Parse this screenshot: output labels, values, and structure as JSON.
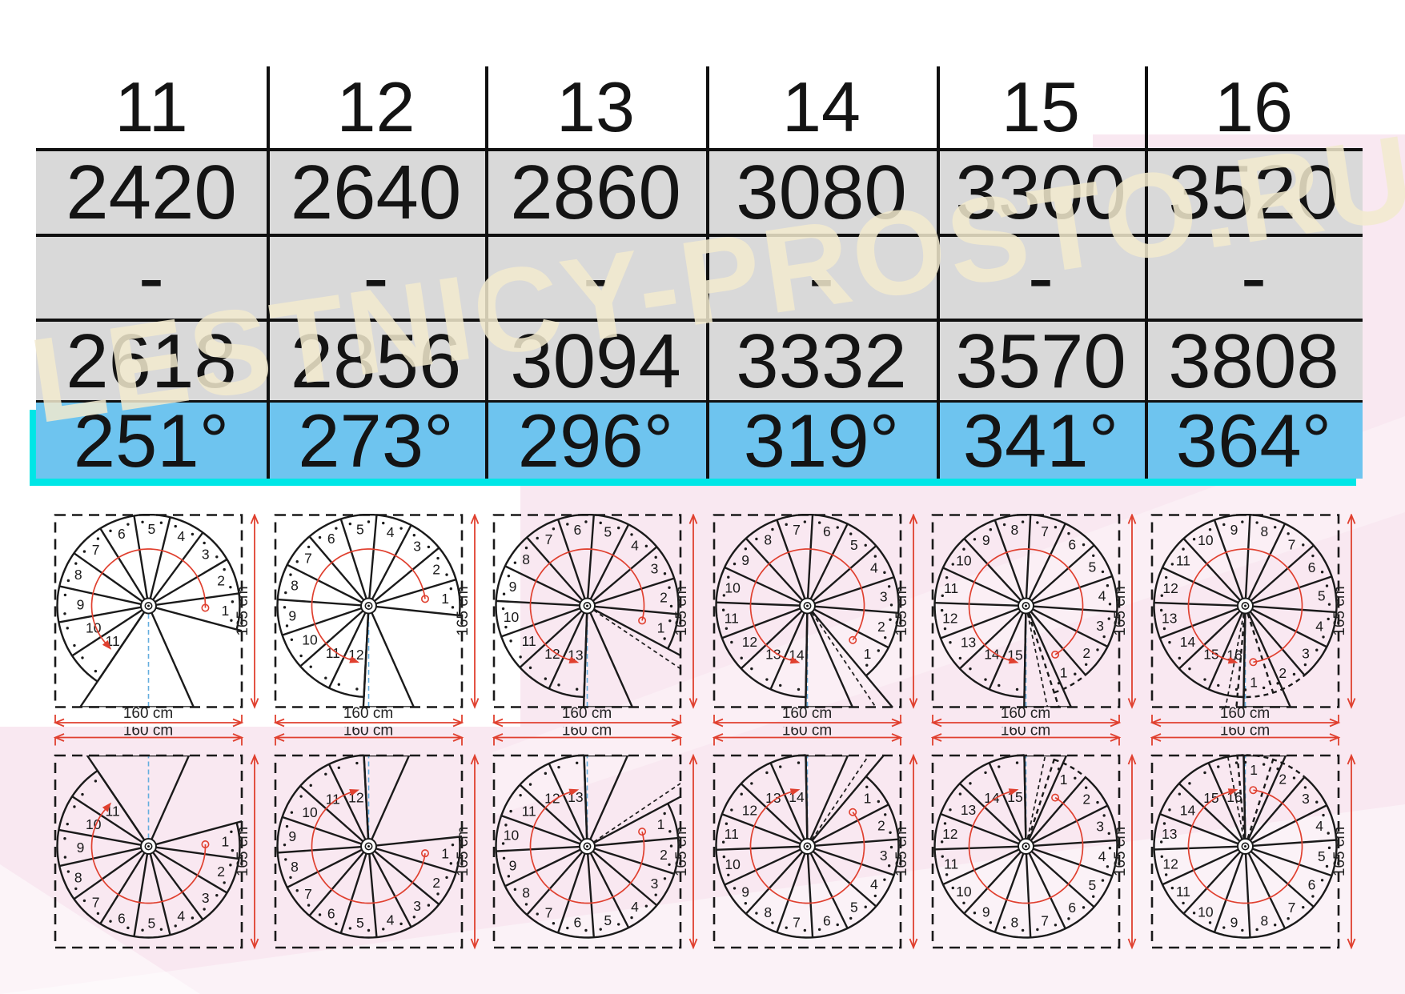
{
  "watermark_text": "LESTNICY-PROSTO.RU",
  "colors": {
    "accent_red": "#e0402f",
    "row_blue": "#6ec4ef",
    "cyan": "#00e6e6",
    "band_gray": "#d9d9d9",
    "pink": "#f6dcea",
    "cream": "#f2eace",
    "ink": "#161616",
    "blue_dash": "#64aede"
  },
  "table": {
    "header": [
      "11",
      "12",
      "13",
      "14",
      "15",
      "16"
    ],
    "rows": [
      {
        "id": "row-2420",
        "values": [
          "2420",
          "2640",
          "2860",
          "3080",
          "3300",
          "3520"
        ]
      },
      {
        "id": "row-dash",
        "values": [
          "-",
          "-",
          "-",
          "-",
          "-",
          "-"
        ]
      },
      {
        "id": "row-2618",
        "values": [
          "2618",
          "2856",
          "3094",
          "3332",
          "3570",
          "3808"
        ]
      },
      {
        "id": "row-angle",
        "values": [
          "251°",
          "273°",
          "296°",
          "319°",
          "341°",
          "364°"
        ]
      }
    ]
  },
  "diagrams": {
    "width_label": "160 cm",
    "height_label": "165 cm",
    "step_counts": [
      11,
      12,
      13,
      14,
      15,
      16
    ],
    "turn_angles_deg": [
      251,
      273,
      296,
      319,
      341,
      364
    ],
    "start_angles_deg": [
      -15,
      -6,
      -28,
      -50,
      -72,
      -95
    ],
    "rows": [
      "top",
      "bottom"
    ]
  }
}
